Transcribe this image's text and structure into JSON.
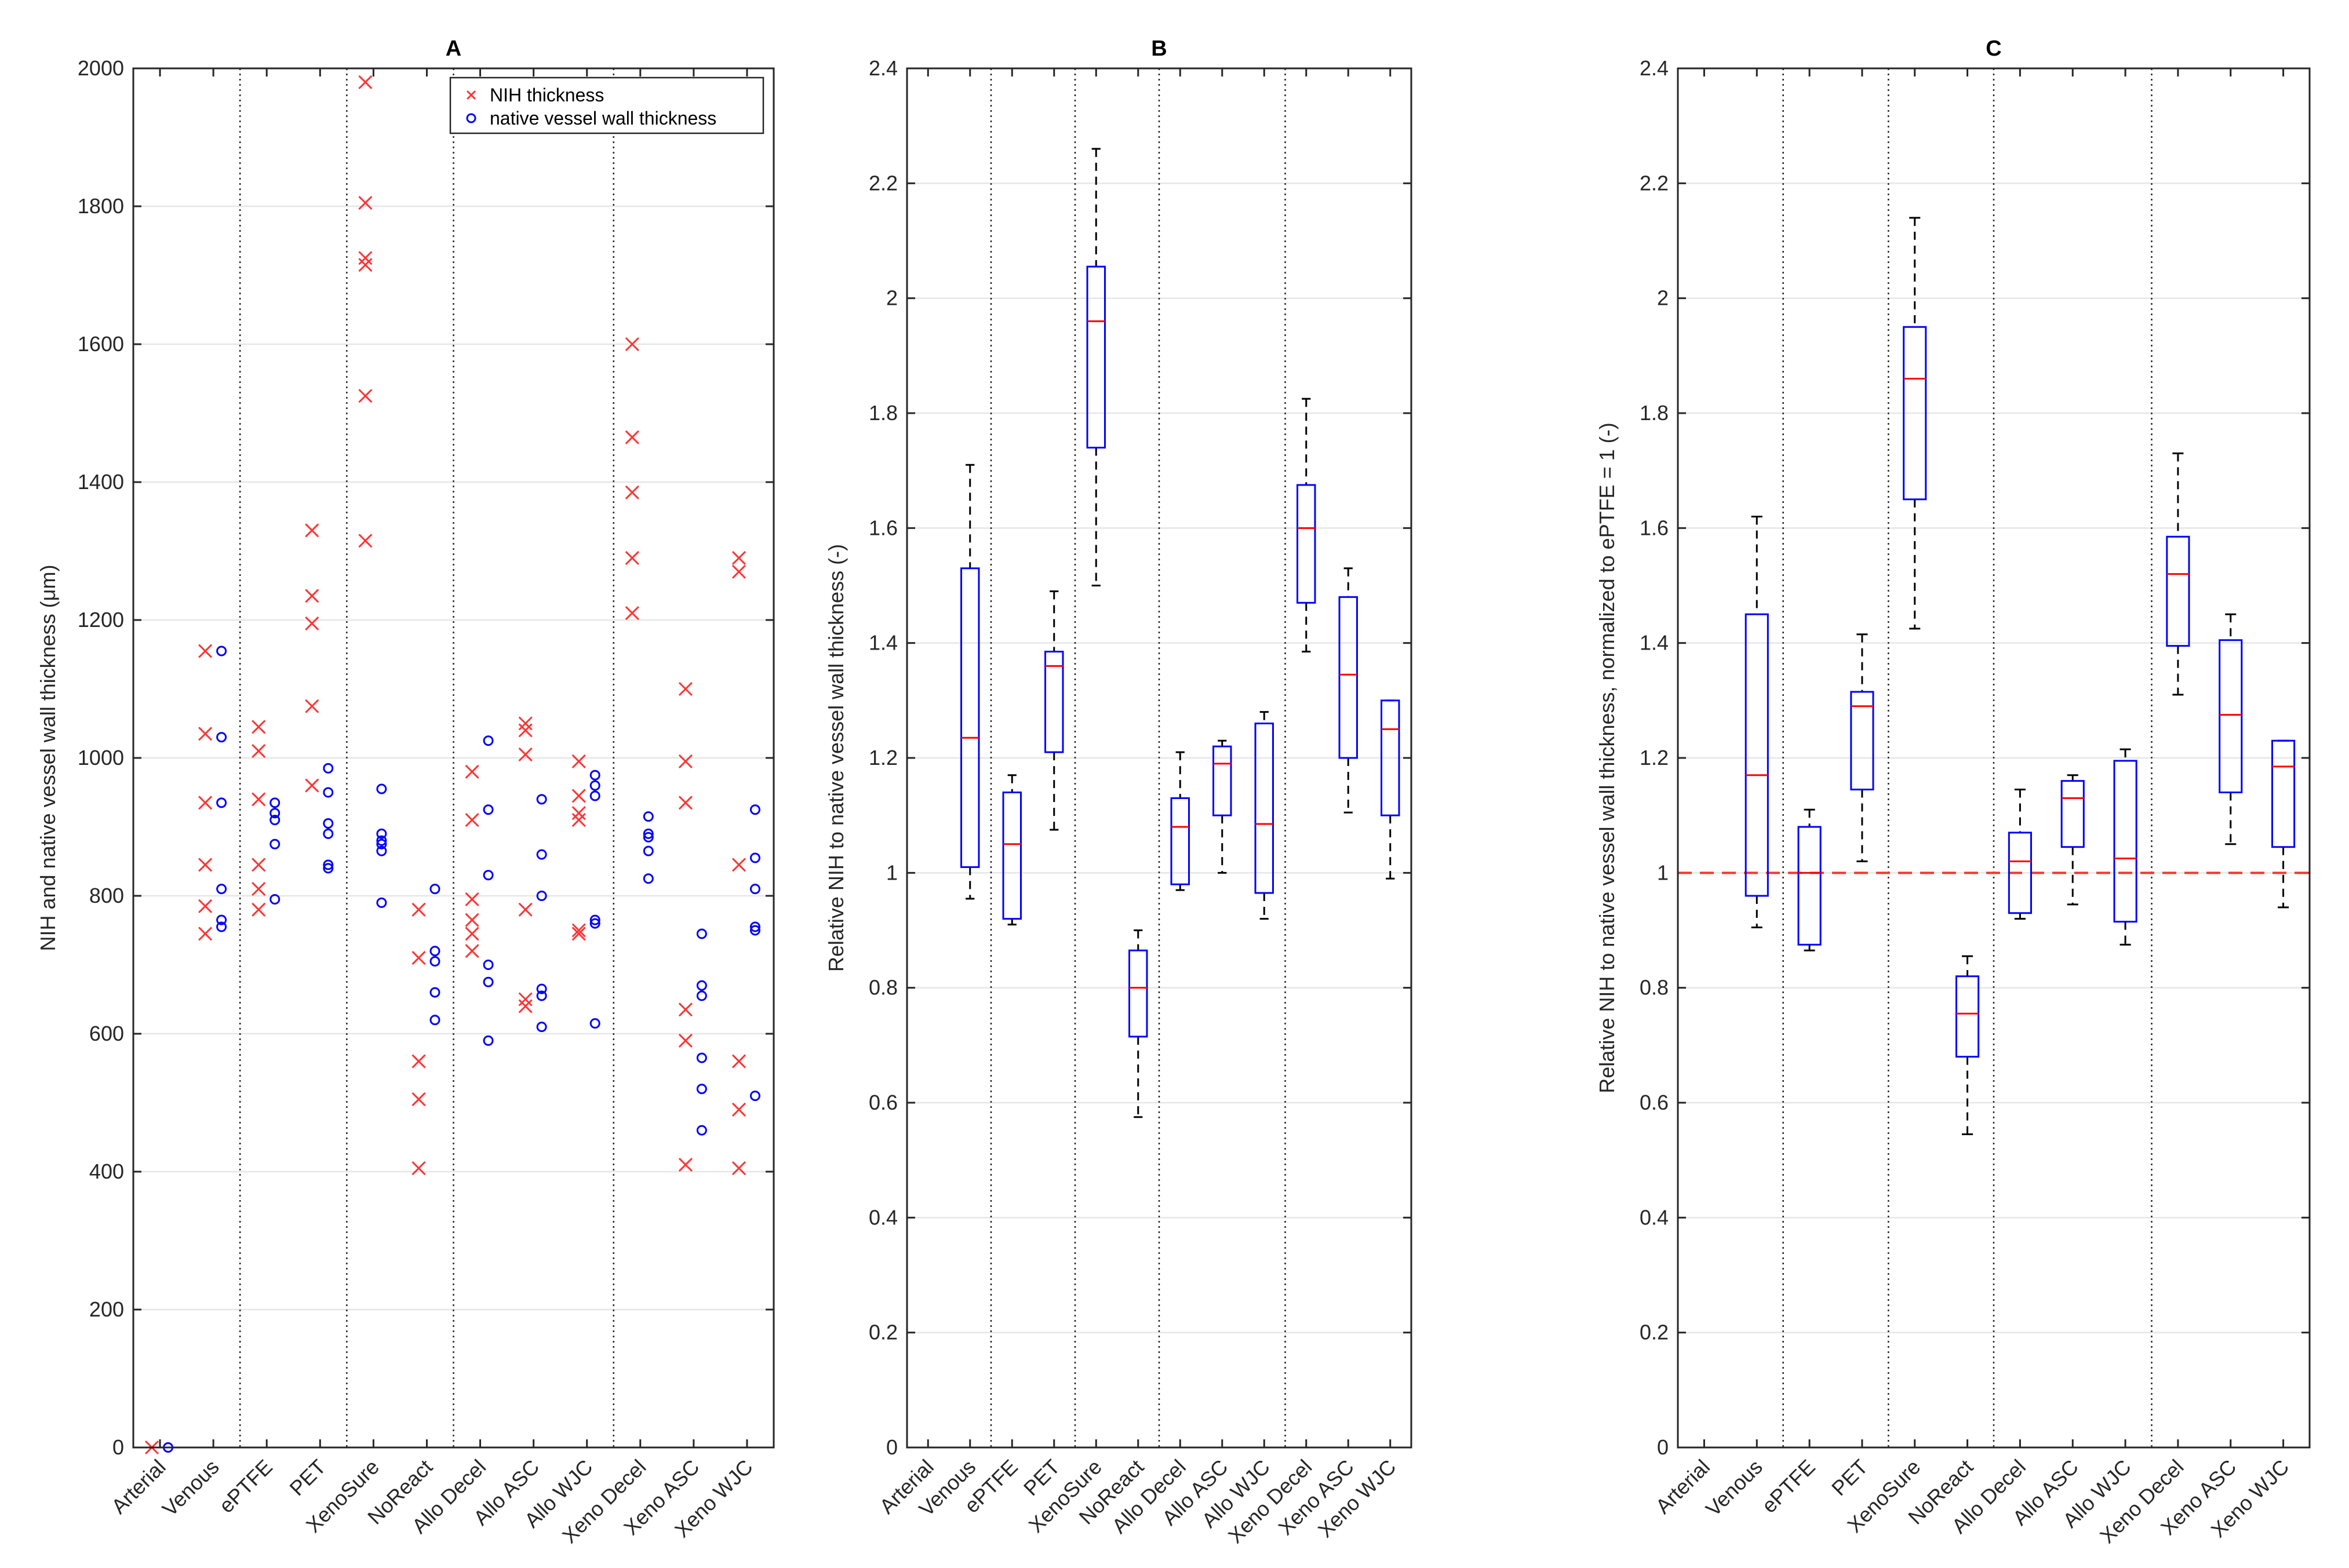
{
  "chart_data": [
    {
      "panel": "A",
      "type": "scatter",
      "title": "A",
      "ylabel": "NIH and native vessel wall thickness (μm)",
      "xlabel": "",
      "ylim": [
        0,
        2000
      ],
      "yticks": [
        0,
        200,
        400,
        600,
        800,
        1000,
        1200,
        1400,
        1600,
        1800,
        2000
      ],
      "grid": "horizontal",
      "categories": [
        "Arterial",
        "Venous",
        "ePTFE",
        "PET",
        "XenoSure",
        "NoReact",
        "Allo Decel",
        "Allo ASC",
        "Allo WJC",
        "Xeno Decel",
        "Xeno ASC",
        "Xeno WJC"
      ],
      "separators_after": [
        2,
        4,
        6,
        9
      ],
      "legend": {
        "position": "top-right",
        "entries": [
          "NIH thickness",
          "native vessel wall thickness"
        ]
      },
      "series": [
        {
          "name": "NIH thickness",
          "marker": "x",
          "color": "#ff3333",
          "points": [
            [
              1,
              0
            ],
            [
              2,
              745
            ],
            [
              2,
              785
            ],
            [
              2,
              845
            ],
            [
              2,
              935
            ],
            [
              2,
              1035
            ],
            [
              2,
              1155
            ],
            [
              3,
              780
            ],
            [
              3,
              810
            ],
            [
              3,
              845
            ],
            [
              3,
              940
            ],
            [
              3,
              1010
            ],
            [
              3,
              1045
            ],
            [
              4,
              1075
            ],
            [
              4,
              1195
            ],
            [
              4,
              1330
            ],
            [
              4,
              960
            ],
            [
              4,
              1235
            ],
            [
              5,
              1315
            ],
            [
              5,
              1525
            ],
            [
              5,
              1715
            ],
            [
              5,
              1725
            ],
            [
              5,
              1805
            ],
            [
              5,
              1980
            ],
            [
              6,
              405
            ],
            [
              6,
              505
            ],
            [
              6,
              560
            ],
            [
              6,
              710
            ],
            [
              6,
              780
            ],
            [
              7,
              720
            ],
            [
              7,
              745
            ],
            [
              7,
              765
            ],
            [
              7,
              795
            ],
            [
              7,
              910
            ],
            [
              7,
              980
            ],
            [
              8,
              640
            ],
            [
              8,
              650
            ],
            [
              8,
              780
            ],
            [
              8,
              1005
            ],
            [
              8,
              1040
            ],
            [
              8,
              1050
            ],
            [
              9,
              745
            ],
            [
              9,
              750
            ],
            [
              9,
              910
            ],
            [
              9,
              920
            ],
            [
              9,
              945
            ],
            [
              9,
              995
            ],
            [
              10,
              1210
            ],
            [
              10,
              1290
            ],
            [
              10,
              1385
            ],
            [
              10,
              1465
            ],
            [
              10,
              1600
            ],
            [
              11,
              410
            ],
            [
              11,
              590
            ],
            [
              11,
              635
            ],
            [
              11,
              935
            ],
            [
              11,
              995
            ],
            [
              11,
              1100
            ],
            [
              12,
              405
            ],
            [
              12,
              490
            ],
            [
              12,
              560
            ],
            [
              12,
              845
            ],
            [
              12,
              1270
            ],
            [
              12,
              1290
            ]
          ]
        },
        {
          "name": "native vessel wall thickness",
          "marker": "o",
          "color": "#0000ff",
          "points": [
            [
              1,
              0
            ],
            [
              2,
              755
            ],
            [
              2,
              765
            ],
            [
              2,
              810
            ],
            [
              2,
              935
            ],
            [
              2,
              1030
            ],
            [
              2,
              1155
            ],
            [
              3,
              795
            ],
            [
              3,
              875
            ],
            [
              3,
              910
            ],
            [
              3,
              920
            ],
            [
              3,
              935
            ],
            [
              4,
              840
            ],
            [
              4,
              845
            ],
            [
              4,
              890
            ],
            [
              4,
              905
            ],
            [
              4,
              950
            ],
            [
              4,
              985
            ],
            [
              5,
              790
            ],
            [
              5,
              865
            ],
            [
              5,
              875
            ],
            [
              5,
              880
            ],
            [
              5,
              890
            ],
            [
              5,
              955
            ],
            [
              6,
              620
            ],
            [
              6,
              660
            ],
            [
              6,
              705
            ],
            [
              6,
              720
            ],
            [
              6,
              810
            ],
            [
              7,
              590
            ],
            [
              7,
              675
            ],
            [
              7,
              700
            ],
            [
              7,
              830
            ],
            [
              7,
              925
            ],
            [
              7,
              1025
            ],
            [
              8,
              610
            ],
            [
              8,
              655
            ],
            [
              8,
              665
            ],
            [
              8,
              800
            ],
            [
              8,
              860
            ],
            [
              8,
              940
            ],
            [
              9,
              615
            ],
            [
              9,
              760
            ],
            [
              9,
              765
            ],
            [
              9,
              945
            ],
            [
              9,
              960
            ],
            [
              9,
              975
            ],
            [
              10,
              825
            ],
            [
              10,
              865
            ],
            [
              10,
              885
            ],
            [
              10,
              890
            ],
            [
              10,
              915
            ],
            [
              11,
              460
            ],
            [
              11,
              520
            ],
            [
              11,
              565
            ],
            [
              11,
              655
            ],
            [
              11,
              670
            ],
            [
              11,
              745
            ],
            [
              12,
              510
            ],
            [
              12,
              750
            ],
            [
              12,
              755
            ],
            [
              12,
              810
            ],
            [
              12,
              855
            ],
            [
              12,
              925
            ]
          ]
        }
      ]
    },
    {
      "panel": "B",
      "type": "box",
      "title": "B",
      "ylabel": "Relative NIH to native vessel wall thickness (-)",
      "xlabel": "",
      "ylim": [
        0,
        2.4
      ],
      "yticks": [
        0,
        0.2,
        0.4,
        0.6,
        0.8,
        1,
        1.2,
        1.4,
        1.6,
        1.8,
        2,
        2.2,
        2.4
      ],
      "grid": "horizontal",
      "categories": [
        "Arterial",
        "Venous",
        "ePTFE",
        "PET",
        "XenoSure",
        "NoReact",
        "Allo Decel",
        "Allo ASC",
        "Allo WJC",
        "Xeno Decel",
        "Xeno ASC",
        "Xeno WJC"
      ],
      "separators_after": [
        2,
        4,
        6,
        9
      ],
      "boxes": [
        {
          "category": "Arterial",
          "min": 0,
          "q1": 0,
          "median": 0,
          "q3": 0,
          "max": 0
        },
        {
          "category": "Venous",
          "min": 0.955,
          "q1": 1.01,
          "median": 1.235,
          "q3": 1.53,
          "max": 1.71
        },
        {
          "category": "ePTFE",
          "min": 0.91,
          "q1": 0.92,
          "median": 1.05,
          "q3": 1.14,
          "max": 1.17
        },
        {
          "category": "PET",
          "min": 1.075,
          "q1": 1.21,
          "median": 1.36,
          "q3": 1.385,
          "max": 1.49
        },
        {
          "category": "XenoSure",
          "min": 1.5,
          "q1": 1.74,
          "median": 1.96,
          "q3": 2.055,
          "max": 2.26
        },
        {
          "category": "NoReact",
          "min": 0.575,
          "q1": 0.715,
          "median": 0.8,
          "q3": 0.865,
          "max": 0.9
        },
        {
          "category": "Allo Decel",
          "min": 0.97,
          "q1": 0.98,
          "median": 1.08,
          "q3": 1.13,
          "max": 1.21
        },
        {
          "category": "Allo ASC",
          "min": 1.0,
          "q1": 1.1,
          "median": 1.19,
          "q3": 1.22,
          "max": 1.23
        },
        {
          "category": "Allo WJC",
          "min": 0.92,
          "q1": 0.965,
          "median": 1.085,
          "q3": 1.26,
          "max": 1.28
        },
        {
          "category": "Xeno Decel",
          "min": 1.385,
          "q1": 1.47,
          "median": 1.6,
          "q3": 1.675,
          "max": 1.825
        },
        {
          "category": "Xeno ASC",
          "min": 1.105,
          "q1": 1.2,
          "median": 1.345,
          "q3": 1.48,
          "max": 1.53
        },
        {
          "category": "Xeno WJC",
          "min": 0.99,
          "q1": 1.1,
          "median": 1.25,
          "q3": 1.3,
          "max": 1.3
        }
      ]
    },
    {
      "panel": "C",
      "type": "box",
      "title": "C",
      "ylabel": "Relative NIH to native vessel wall thickness, normalized to ePTFE = 1 (-)",
      "xlabel": "",
      "ylim": [
        0,
        2.4
      ],
      "yticks": [
        0,
        0.2,
        0.4,
        0.6,
        0.8,
        1,
        1.2,
        1.4,
        1.6,
        1.8,
        2,
        2.2,
        2.4
      ],
      "grid": "horizontal",
      "reference_line": 1,
      "categories": [
        "Arterial",
        "Venous",
        "ePTFE",
        "PET",
        "XenoSure",
        "NoReact",
        "Allo Decel",
        "Allo ASC",
        "Allo WJC",
        "Xeno Decel",
        "Xeno ASC",
        "Xeno WJC"
      ],
      "separators_after": [
        2,
        4,
        6,
        9
      ],
      "boxes": [
        {
          "category": "Arterial",
          "min": 0,
          "q1": 0,
          "median": 0,
          "q3": 0,
          "max": 0
        },
        {
          "category": "Venous",
          "min": 0.905,
          "q1": 0.96,
          "median": 1.17,
          "q3": 1.45,
          "max": 1.62
        },
        {
          "category": "ePTFE",
          "min": 0.865,
          "q1": 0.875,
          "median": 1.0,
          "q3": 1.08,
          "max": 1.11
        },
        {
          "category": "PET",
          "min": 1.02,
          "q1": 1.145,
          "median": 1.29,
          "q3": 1.315,
          "max": 1.415
        },
        {
          "category": "XenoSure",
          "min": 1.425,
          "q1": 1.65,
          "median": 1.86,
          "q3": 1.95,
          "max": 2.14
        },
        {
          "category": "NoReact",
          "min": 0.545,
          "q1": 0.68,
          "median": 0.755,
          "q3": 0.82,
          "max": 0.855
        },
        {
          "category": "Allo Decel",
          "min": 0.92,
          "q1": 0.93,
          "median": 1.02,
          "q3": 1.07,
          "max": 1.145
        },
        {
          "category": "Allo ASC",
          "min": 0.945,
          "q1": 1.045,
          "median": 1.13,
          "q3": 1.16,
          "max": 1.17
        },
        {
          "category": "Allo WJC",
          "min": 0.875,
          "q1": 0.915,
          "median": 1.025,
          "q3": 1.195,
          "max": 1.215
        },
        {
          "category": "Xeno Decel",
          "min": 1.31,
          "q1": 1.395,
          "median": 1.52,
          "q3": 1.585,
          "max": 1.73
        },
        {
          "category": "Xeno ASC",
          "min": 1.05,
          "q1": 1.14,
          "median": 1.275,
          "q3": 1.405,
          "max": 1.45
        },
        {
          "category": "Xeno WJC",
          "min": 0.94,
          "q1": 1.045,
          "median": 1.185,
          "q3": 1.23,
          "max": 1.23
        }
      ]
    }
  ]
}
